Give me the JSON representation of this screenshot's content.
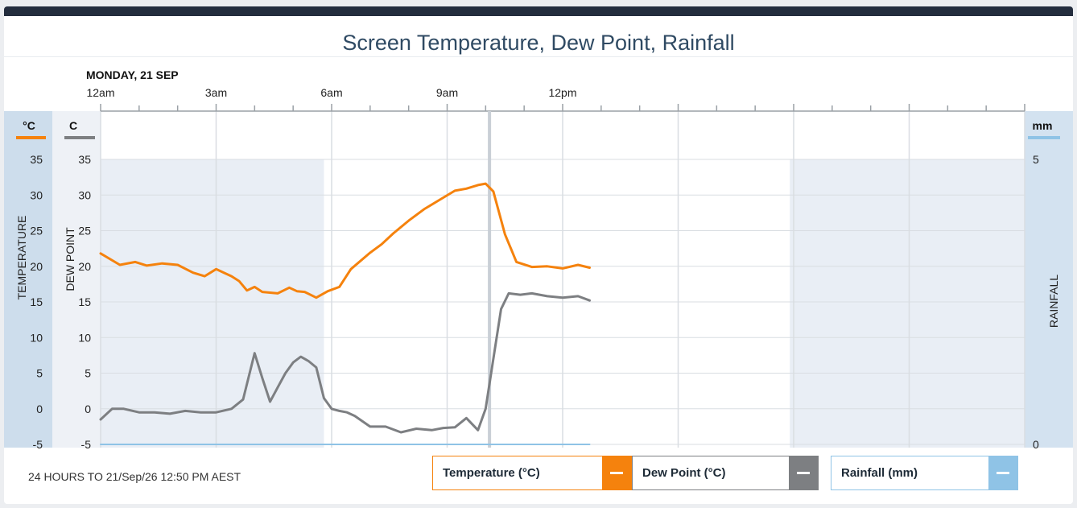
{
  "title": "Screen Temperature, Dew Point, Rainfall",
  "date_label": "MONDAY, 21 SEP",
  "footer": "24 HOURS TO 21/Sep/26 12:50 PM AEST",
  "legend": [
    {
      "label": "Temperature (°C)",
      "color": "#f5820d",
      "icon": "minus-icon"
    },
    {
      "label": "Dew Point (°C)",
      "color": "#7d7f82",
      "icon": "minus-icon"
    },
    {
      "label": "Rainfall (mm)",
      "color": "#8fc3e6",
      "icon": "minus-icon"
    }
  ],
  "chart_data": {
    "type": "line",
    "x_tick_labels": [
      "12am",
      "3am",
      "6am",
      "9am",
      "12pm"
    ],
    "axes": {
      "temperature": {
        "title": "TEMPERATURE",
        "unit": "°C",
        "ticks": [
          35,
          30,
          25,
          20,
          15,
          10,
          5,
          0,
          -5
        ],
        "range": [
          -5,
          35
        ]
      },
      "dew_point": {
        "title": "DEW POINT",
        "unit": "C",
        "ticks": [
          35,
          30,
          25,
          20,
          15,
          10,
          5,
          0,
          -5
        ],
        "range": [
          -5,
          35
        ]
      },
      "rainfall": {
        "title": "RAINFALL",
        "unit": "mm",
        "ticks": [
          5,
          0
        ],
        "range": [
          0,
          5
        ]
      }
    },
    "x_range_hours": [
      0,
      24
    ],
    "night_shading_hours": [
      [
        0,
        5.8
      ],
      [
        17.9,
        24
      ]
    ],
    "current_time_hours": 10.1,
    "series": [
      {
        "name": "Temperature (°C)",
        "axis": "temperature",
        "color": "#f5820d",
        "x": [
          0,
          0.5,
          0.9,
          1.2,
          1.6,
          2.0,
          2.4,
          2.7,
          3.0,
          3.2,
          3.4,
          3.6,
          3.8,
          4.0,
          4.2,
          4.6,
          4.9,
          5.1,
          5.3,
          5.6,
          5.9,
          6.2,
          6.5,
          7.0,
          7.3,
          7.6,
          8.0,
          8.4,
          8.8,
          9.2,
          9.5,
          9.8,
          10.0,
          10.2,
          10.5,
          10.8,
          11.2,
          11.6,
          12.0,
          12.4,
          12.7
        ],
        "y": [
          21.8,
          20.2,
          20.6,
          20.1,
          20.4,
          20.2,
          19.1,
          18.6,
          19.6,
          19.1,
          18.6,
          17.9,
          16.6,
          17.1,
          16.4,
          16.2,
          17.0,
          16.5,
          16.4,
          15.6,
          16.5,
          17.1,
          19.6,
          21.9,
          23.1,
          24.6,
          26.4,
          28.0,
          29.3,
          30.6,
          30.9,
          31.4,
          31.6,
          30.5,
          24.5,
          20.6,
          19.9,
          20.0,
          19.7,
          20.2,
          19.8
        ]
      },
      {
        "name": "Dew Point (°C)",
        "axis": "dew_point",
        "color": "#7d7f82",
        "x": [
          0,
          0.3,
          0.6,
          1.0,
          1.4,
          1.8,
          2.2,
          2.6,
          3.0,
          3.4,
          3.7,
          4.0,
          4.2,
          4.4,
          4.6,
          4.8,
          5.0,
          5.2,
          5.4,
          5.6,
          5.8,
          6.0,
          6.2,
          6.4,
          6.6,
          7.0,
          7.4,
          7.8,
          8.2,
          8.6,
          8.9,
          9.2,
          9.5,
          9.8,
          10.0,
          10.2,
          10.4,
          10.6,
          10.9,
          11.2,
          11.6,
          12.0,
          12.4,
          12.7
        ],
        "y": [
          -1.5,
          0.0,
          0.0,
          -0.5,
          -0.5,
          -0.7,
          -0.3,
          -0.5,
          -0.5,
          0.0,
          1.3,
          7.8,
          4.3,
          1.0,
          3.0,
          5.0,
          6.5,
          7.3,
          6.7,
          5.8,
          1.5,
          0.0,
          -0.3,
          -0.5,
          -1.0,
          -2.5,
          -2.5,
          -3.3,
          -2.8,
          -3.0,
          -2.7,
          -2.6,
          -1.3,
          -3.0,
          0.0,
          7.0,
          14.0,
          16.2,
          16.0,
          16.2,
          15.8,
          15.6,
          15.8,
          15.2
        ]
      },
      {
        "name": "Rainfall (mm)",
        "axis": "rainfall",
        "color": "#8fc3e6",
        "x": [
          0,
          12.7
        ],
        "y": [
          0,
          0
        ]
      }
    ]
  }
}
